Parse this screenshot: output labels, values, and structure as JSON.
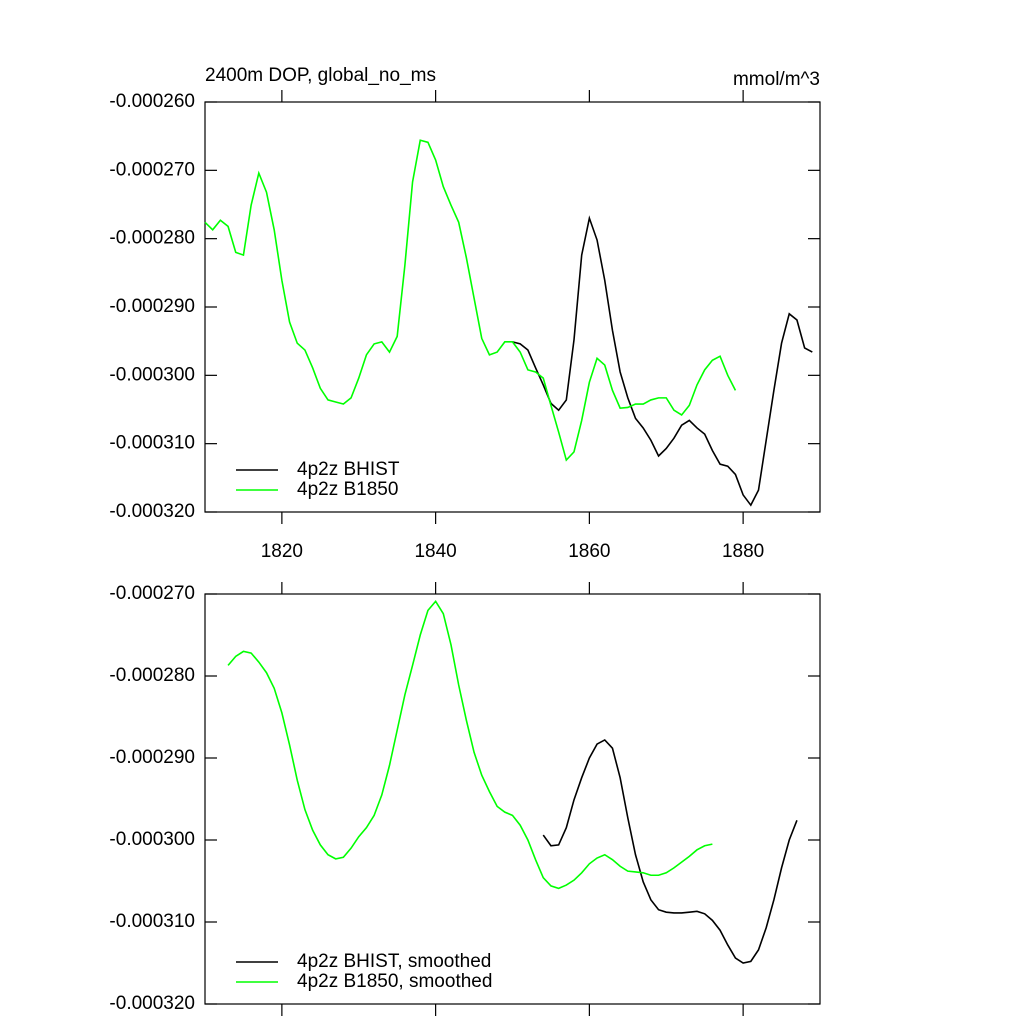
{
  "chart_data": [
    {
      "type": "line",
      "title": "2400m DOP, global_no_ms",
      "units": "mmol/m^3",
      "x": [
        1810,
        1811,
        1812,
        1813,
        1814,
        1815,
        1816,
        1817,
        1818,
        1819,
        1820,
        1821,
        1822,
        1823,
        1824,
        1825,
        1826,
        1827,
        1828,
        1829,
        1830,
        1831,
        1832,
        1833,
        1834,
        1835,
        1836,
        1837,
        1838,
        1839,
        1840,
        1841,
        1842,
        1843,
        1844,
        1845,
        1846,
        1847,
        1848,
        1849,
        1850,
        1851,
        1852,
        1853,
        1854,
        1855,
        1856,
        1857,
        1858,
        1859,
        1860,
        1861,
        1862,
        1863,
        1864,
        1865,
        1866,
        1867,
        1868,
        1869,
        1870,
        1871,
        1872,
        1873,
        1874,
        1875,
        1876,
        1877,
        1878,
        1879,
        1880,
        1881,
        1882,
        1883,
        1884,
        1885,
        1886,
        1887,
        1888,
        1889
      ],
      "series": [
        {
          "name": "4p2z BHIST",
          "color": "#000000",
          "values": [
            null,
            null,
            null,
            null,
            null,
            null,
            null,
            null,
            null,
            null,
            null,
            null,
            null,
            null,
            null,
            null,
            null,
            null,
            null,
            null,
            null,
            null,
            null,
            null,
            null,
            null,
            null,
            null,
            null,
            null,
            null,
            null,
            null,
            null,
            null,
            null,
            null,
            null,
            null,
            null,
            -0.0002951,
            -0.0002954,
            -0.0002963,
            -0.0002989,
            -0.0003014,
            -0.0003041,
            -0.0003051,
            -0.0003036,
            -0.0002948,
            -0.0002824,
            -0.000277,
            -0.0002802,
            -0.0002861,
            -0.0002934,
            -0.0002995,
            -0.0003033,
            -0.0003063,
            -0.0003077,
            -0.0003095,
            -0.0003118,
            -0.0003107,
            -0.0003092,
            -0.0003073,
            -0.0003066,
            -0.0003077,
            -0.0003086,
            -0.000311,
            -0.000313,
            -0.0003133,
            -0.0003145,
            -0.0003175,
            -0.000319,
            -0.0003168,
            -0.0003095,
            -0.0003022,
            -0.0002953,
            -0.000291,
            -0.0002919,
            -0.000296,
            -0.0002966
          ]
        },
        {
          "name": "4p2z B1850",
          "color": "#00ff00",
          "values": [
            -0.0002776,
            -0.0002787,
            -0.0002773,
            -0.0002782,
            -0.000282,
            -0.0002824,
            -0.0002751,
            -0.0002704,
            -0.0002732,
            -0.0002787,
            -0.0002861,
            -0.0002922,
            -0.0002953,
            -0.0002963,
            -0.0002989,
            -0.0003019,
            -0.0003036,
            -0.0003039,
            -0.0003042,
            -0.0003033,
            -0.0003004,
            -0.000297,
            -0.0002954,
            -0.0002951,
            -0.0002966,
            -0.0002943,
            -0.0002839,
            -0.0002717,
            -0.0002656,
            -0.0002659,
            -0.0002685,
            -0.0002724,
            -0.0002751,
            -0.0002776,
            -0.0002828,
            -0.0002887,
            -0.0002946,
            -0.000297,
            -0.0002966,
            -0.0002951,
            -0.0002951,
            -0.0002966,
            -0.0002992,
            -0.0002995,
            -0.0003004,
            -0.0003044,
            -0.0003083,
            -0.0003124,
            -0.0003112,
            -0.0003066,
            -0.000301,
            -0.0002975,
            -0.0002985,
            -0.0003022,
            -0.0003048,
            -0.0003047,
            -0.0003042,
            -0.0003042,
            -0.0003036,
            -0.0003033,
            -0.0003033,
            -0.0003051,
            -0.0003058,
            -0.0003044,
            -0.0003014,
            -0.0002992,
            -0.0002978,
            -0.0002972,
            -0.0003,
            -0.0003022,
            null,
            null,
            null,
            null,
            null,
            null,
            null,
            null,
            null,
            null
          ]
        }
      ],
      "xlim": [
        1810,
        1890
      ],
      "xticks": [
        1820,
        1840,
        1860,
        1880
      ],
      "ylim": [
        -0.00032,
        -0.00026
      ],
      "yticks": [
        {
          "value": -0.00026,
          "label": "-0.000260"
        },
        {
          "value": -0.00027,
          "label": "-0.000270"
        },
        {
          "value": -0.00028,
          "label": "-0.000280"
        },
        {
          "value": -0.00029,
          "label": "-0.000290"
        },
        {
          "value": -0.0003,
          "label": "-0.000300"
        },
        {
          "value": -0.00031,
          "label": "-0.000310"
        },
        {
          "value": -0.00032,
          "label": "-0.000320"
        }
      ],
      "legend": "lower left"
    },
    {
      "type": "line",
      "x": [
        1813,
        1814,
        1815,
        1816,
        1817,
        1818,
        1819,
        1820,
        1821,
        1822,
        1823,
        1824,
        1825,
        1826,
        1827,
        1828,
        1829,
        1830,
        1831,
        1832,
        1833,
        1834,
        1835,
        1836,
        1837,
        1838,
        1839,
        1840,
        1841,
        1842,
        1843,
        1844,
        1845,
        1846,
        1847,
        1848,
        1849,
        1850,
        1851,
        1852,
        1853,
        1854,
        1855,
        1856,
        1857,
        1858,
        1859,
        1860,
        1861,
        1862,
        1863,
        1864,
        1865,
        1866,
        1867,
        1868,
        1869,
        1870,
        1871,
        1872,
        1873,
        1874,
        1875,
        1876,
        1877,
        1878,
        1879,
        1880,
        1881,
        1882,
        1883,
        1884,
        1885,
        1886,
        1887
      ],
      "series": [
        {
          "name": "4p2z BHIST, smoothed",
          "color": "#000000",
          "values": [
            null,
            null,
            null,
            null,
            null,
            null,
            null,
            null,
            null,
            null,
            null,
            null,
            null,
            null,
            null,
            null,
            null,
            null,
            null,
            null,
            null,
            null,
            null,
            null,
            null,
            null,
            null,
            null,
            null,
            null,
            null,
            null,
            null,
            null,
            null,
            null,
            null,
            null,
            null,
            null,
            null,
            -0.0002994,
            -0.0003007,
            -0.0003006,
            -0.0002985,
            -0.0002951,
            -0.0002924,
            -0.00029,
            -0.0002883,
            -0.0002878,
            -0.0002888,
            -0.0002924,
            -0.0002973,
            -0.0003018,
            -0.0003051,
            -0.0003073,
            -0.0003085,
            -0.0003088,
            -0.0003089,
            -0.0003089,
            -0.0003088,
            -0.0003087,
            -0.000309,
            -0.0003098,
            -0.000311,
            -0.0003128,
            -0.0003144,
            -0.000315,
            -0.0003148,
            -0.0003134,
            -0.0003107,
            -0.0003073,
            -0.0003034,
            -0.0003,
            -0.0002976
          ]
        },
        {
          "name": "4p2z B1850, smoothed",
          "color": "#00ff00",
          "values": [
            -0.0002787,
            -0.0002776,
            -0.000277,
            -0.0002772,
            -0.0002783,
            -0.0002796,
            -0.0002815,
            -0.0002845,
            -0.0002884,
            -0.0002927,
            -0.0002963,
            -0.0002988,
            -0.0003006,
            -0.0003018,
            -0.0003023,
            -0.0003021,
            -0.000301,
            -0.0002996,
            -0.0002985,
            -0.000297,
            -0.0002945,
            -0.0002909,
            -0.0002866,
            -0.0002823,
            -0.0002787,
            -0.000275,
            -0.000272,
            -0.0002709,
            -0.0002724,
            -0.0002762,
            -0.0002811,
            -0.0002854,
            -0.0002893,
            -0.0002921,
            -0.0002941,
            -0.0002959,
            -0.0002966,
            -0.000297,
            -0.0002982,
            -0.0003,
            -0.0003024,
            -0.0003046,
            -0.0003056,
            -0.0003059,
            -0.0003055,
            -0.0003049,
            -0.000304,
            -0.0003029,
            -0.0003022,
            -0.0003018,
            -0.0003024,
            -0.0003032,
            -0.0003038,
            -0.0003039,
            -0.000304,
            -0.0003043,
            -0.0003043,
            -0.000304,
            -0.0003034,
            -0.0003027,
            -0.000302,
            -0.0003012,
            -0.0003007,
            -0.0003005,
            null,
            null,
            null,
            null,
            null,
            null,
            null,
            null,
            null,
            null,
            null
          ]
        }
      ],
      "xlim": [
        1810,
        1890
      ],
      "ylim": [
        -0.00032,
        -0.00027
      ],
      "yticks": [
        {
          "value": -0.00027,
          "label": "-0.000270"
        },
        {
          "value": -0.00028,
          "label": "-0.000280"
        },
        {
          "value": -0.00029,
          "label": "-0.000290"
        },
        {
          "value": -0.0003,
          "label": "-0.000300"
        },
        {
          "value": -0.00031,
          "label": "-0.000310"
        },
        {
          "value": -0.00032,
          "label": "-0.000320"
        }
      ],
      "legend": "lower left"
    }
  ]
}
